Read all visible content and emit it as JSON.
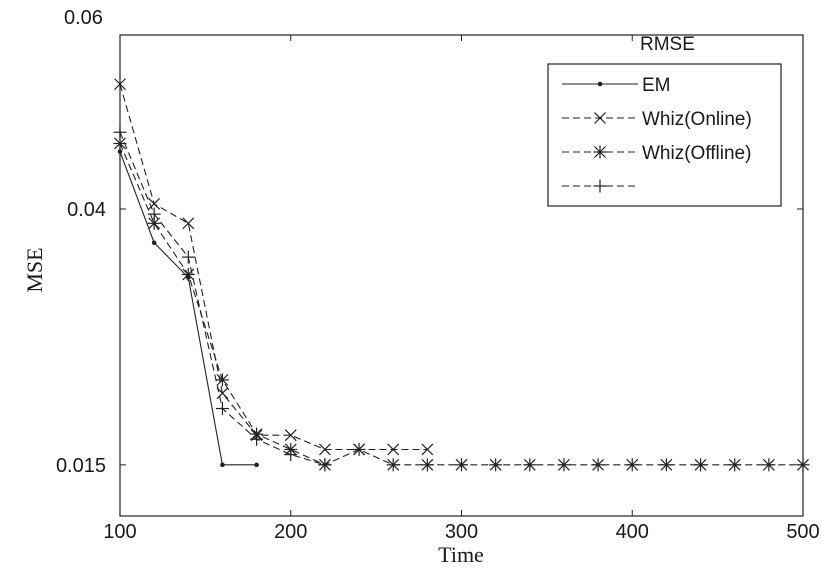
{
  "chart_data": {
    "type": "line",
    "xlabel": "Time",
    "ylabel": "MSE",
    "xlim": [
      100,
      500
    ],
    "ylim": [
      0.01,
      0.057
    ],
    "x_ticks": [
      100,
      200,
      300,
      400,
      500
    ],
    "y_ticks": [
      0.015,
      0.04
    ],
    "top_label": "0.06",
    "grid": false,
    "legend_title": "RMSE",
    "legend_position": "top-right",
    "series": [
      {
        "name": "EM",
        "style": "solid",
        "marker": "dot",
        "color": "#222222",
        "x": [
          100,
          120,
          140,
          160,
          180
        ],
        "y": [
          0.0456,
          0.0367,
          0.0333,
          0.015,
          0.015
        ]
      },
      {
        "name": "Whiz(Online)",
        "style": "dashed",
        "marker": "x",
        "color": "#222222",
        "x": [
          100,
          120,
          140,
          160,
          180,
          200,
          220,
          240,
          260,
          280
        ],
        "y": [
          0.0522,
          0.0405,
          0.0386,
          0.022,
          0.0179,
          0.0179,
          0.0165,
          0.0165,
          0.0165,
          0.0165
        ]
      },
      {
        "name": "Whiz(Offline)",
        "style": "dashed",
        "marker": "star",
        "color": "#222222",
        "x": [
          100,
          120,
          140,
          160,
          180,
          200,
          220,
          240,
          260,
          280,
          300,
          320,
          340,
          360,
          380,
          400,
          420,
          440,
          460,
          480,
          500
        ],
        "y": [
          0.0464,
          0.0386,
          0.0336,
          0.0233,
          0.018,
          0.0165,
          0.015,
          0.0165,
          0.015,
          0.015,
          0.015,
          0.015,
          0.015,
          0.015,
          0.015,
          0.015,
          0.015,
          0.015,
          0.015,
          0.015,
          0.015
        ]
      },
      {
        "name": "",
        "style": "dashed",
        "marker": "plus",
        "color": "#222222",
        "x": [
          100,
          120,
          140,
          160,
          180,
          200,
          220
        ],
        "y": [
          0.0475,
          0.0395,
          0.0353,
          0.0205,
          0.0175,
          0.016,
          0.015
        ]
      }
    ]
  }
}
